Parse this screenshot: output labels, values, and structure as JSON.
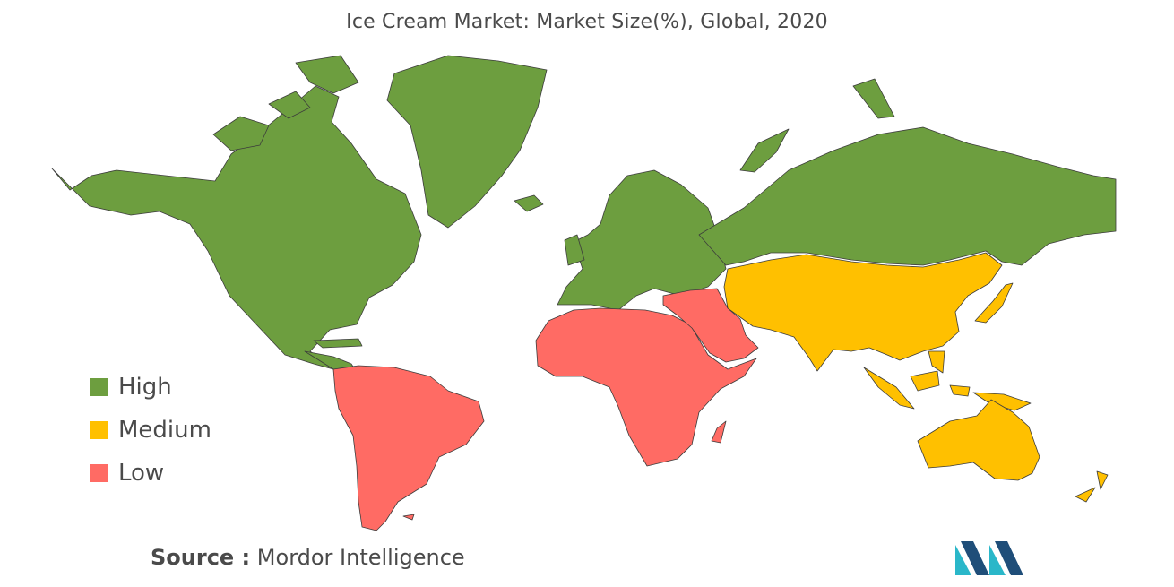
{
  "title": "Ice Cream Market: Market Size(%), Global, 2020",
  "legend": [
    {
      "label": "High",
      "color": "#6d9e3f"
    },
    {
      "label": "Medium",
      "color": "#ffc000"
    },
    {
      "label": "Low",
      "color": "#ff6b64"
    }
  ],
  "source": {
    "label": "Source :",
    "text": "Mordor Intelligence"
  },
  "map_regions": [
    {
      "name": "North America",
      "level": "High"
    },
    {
      "name": "Greenland",
      "level": "High"
    },
    {
      "name": "Europe",
      "level": "High"
    },
    {
      "name": "Russia",
      "level": "High"
    },
    {
      "name": "South America",
      "level": "Low"
    },
    {
      "name": "Africa",
      "level": "Low"
    },
    {
      "name": "Middle East",
      "level": "Low"
    },
    {
      "name": "Asia-Pacific",
      "level": "Medium"
    },
    {
      "name": "Australia",
      "level": "Medium"
    }
  ],
  "colors": {
    "high": "#6d9e3f",
    "medium": "#ffc000",
    "low": "#ff6b64",
    "text": "#4a4a4a",
    "logo_dark": "#1f4e79",
    "logo_light": "#2ab7c9"
  }
}
